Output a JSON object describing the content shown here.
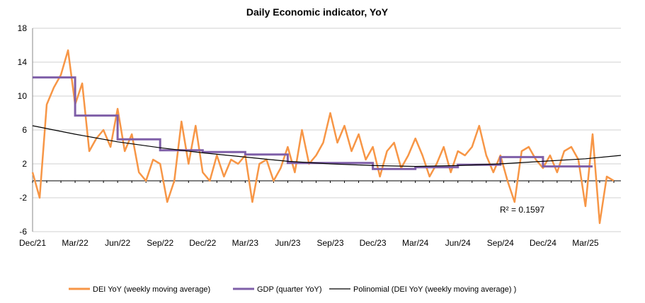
{
  "chart_data": {
    "type": "line",
    "title": "Daily Economic indicator, YoY",
    "xlabel": "",
    "ylabel": "",
    "ylim": [
      -6,
      18
    ],
    "y_ticks": [
      "18",
      "14",
      "10",
      "6",
      "2",
      "-2",
      "-6"
    ],
    "x_ticks": [
      "Dec/21",
      "Mar/22",
      "Jun/22",
      "Sep/22",
      "Dec/22",
      "Mar/23",
      "Jun/23",
      "Sep/23",
      "Dec/23",
      "Mar/24",
      "Jun/24",
      "Sep/24",
      "Dec/24",
      "Mar/25"
    ],
    "x_range_months": [
      0,
      41.5
    ],
    "grid": "horizontal",
    "legend_position": "bottom",
    "annotation": "R² = 0.1597",
    "series": [
      {
        "name": "DEI YoY (weekly moving average)",
        "color": "#F79646",
        "x_months": [
          0,
          0.5,
          1,
          1.5,
          2,
          2.5,
          3,
          3.5,
          4,
          4.5,
          5,
          5.5,
          6,
          6.5,
          7,
          7.5,
          8,
          8.5,
          9,
          9.5,
          10,
          10.5,
          11,
          11.5,
          12,
          12.5,
          13,
          13.5,
          14,
          14.5,
          15,
          15.5,
          16,
          16.5,
          17,
          17.5,
          18,
          18.5,
          19,
          19.5,
          20,
          20.5,
          21,
          21.5,
          22,
          22.5,
          23,
          23.5,
          24,
          24.5,
          25,
          25.5,
          26,
          26.5,
          27,
          27.5,
          28,
          28.5,
          29,
          29.5,
          30,
          30.5,
          31,
          31.5,
          32,
          32.5,
          33,
          33.5,
          34,
          34.5,
          35,
          35.5,
          36,
          36.5,
          37,
          37.5,
          38,
          38.5,
          39,
          39.5,
          40,
          40.5,
          41
        ],
        "values": [
          1.0,
          -2.0,
          9.0,
          11.0,
          12.5,
          15.4,
          9.0,
          11.5,
          3.5,
          5.0,
          6.0,
          4.0,
          8.5,
          3.5,
          5.5,
          1.0,
          0.0,
          2.5,
          2.0,
          -2.5,
          0.0,
          7.0,
          2.0,
          6.5,
          1.0,
          0.0,
          3.0,
          0.5,
          2.5,
          2.0,
          3.0,
          -2.5,
          2.0,
          2.5,
          0.0,
          1.5,
          4.0,
          1.0,
          6.0,
          2.0,
          3.0,
          4.5,
          8.0,
          4.5,
          6.5,
          3.5,
          5.5,
          2.5,
          4.0,
          0.5,
          3.5,
          4.5,
          1.5,
          3.0,
          5.0,
          3.0,
          0.5,
          2.0,
          4.0,
          1.0,
          3.5,
          3.0,
          4.0,
          6.5,
          3.0,
          1.0,
          3.0,
          0.0,
          -2.5,
          3.5,
          4.0,
          2.5,
          1.5,
          3.0,
          1.0,
          3.5,
          4.0,
          2.5,
          -3.0,
          5.5,
          -5.0,
          0.5,
          0.0
        ]
      },
      {
        "name": "GDP (quarter YoY)",
        "color": "#7F5FA8",
        "type": "step",
        "x_months": [
          0,
          3,
          6,
          9,
          12,
          15,
          18,
          21,
          24,
          27,
          30,
          33,
          36,
          39
        ],
        "values": [
          12.2,
          7.7,
          4.9,
          3.6,
          3.4,
          3.1,
          2.1,
          2.1,
          1.4,
          1.6,
          1.9,
          2.8,
          1.7,
          1.7
        ],
        "x_end": 39.5
      },
      {
        "name": "Polinomial (DEI YoY (weekly moving average) )",
        "color": "#000000",
        "type": "trendline",
        "x_months": [
          0,
          3,
          6,
          9,
          12,
          15,
          18,
          21,
          24,
          27,
          30,
          33,
          36,
          39,
          41.5
        ],
        "values": [
          6.5,
          5.5,
          4.6,
          3.9,
          3.3,
          2.8,
          2.3,
          2.0,
          1.8,
          1.7,
          1.8,
          2.0,
          2.3,
          2.6,
          3.0
        ]
      }
    ]
  }
}
